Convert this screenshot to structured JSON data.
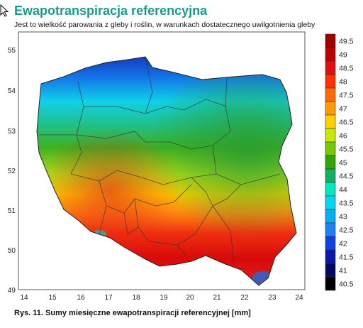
{
  "header": {
    "title": "Ewapotranspiracja referencyjna",
    "subtitle": "Jest to wielkość parowania z gleby i roślin, w warunkach dostatecznego uwilgotnienia gleby"
  },
  "map": {
    "lon_ticks": [
      "14",
      "15",
      "16",
      "17",
      "18",
      "19",
      "20",
      "21",
      "22",
      "23",
      "24"
    ],
    "lat_ticks": [
      "55",
      "54",
      "53",
      "52",
      "51",
      "50",
      "49"
    ],
    "zones": [
      {
        "name": "north-coast",
        "value": 41.5,
        "color": "#0a1f8a"
      },
      {
        "name": "north-central",
        "value": 43.5,
        "color": "#20c0e0"
      },
      {
        "name": "central-north",
        "value": 45.0,
        "color": "#2aa040"
      },
      {
        "name": "central",
        "value": 46.5,
        "color": "#a8dc20"
      },
      {
        "name": "central-south",
        "value": 47.5,
        "color": "#ff9020"
      },
      {
        "name": "south",
        "value": 49.0,
        "color": "#e81818"
      },
      {
        "name": "east",
        "value": 45.5,
        "color": "#30a838"
      }
    ]
  },
  "legend": {
    "entries": [
      {
        "label": "49.5",
        "color": "#9e0000"
      },
      {
        "label": "49",
        "color": "#c00000"
      },
      {
        "label": "48.5",
        "color": "#e01010"
      },
      {
        "label": "48",
        "color": "#ff3000"
      },
      {
        "label": "47.5",
        "color": "#ff6a00"
      },
      {
        "label": "47",
        "color": "#ff9a00"
      },
      {
        "label": "46.5",
        "color": "#ffd000"
      },
      {
        "label": "46",
        "color": "#c8e800"
      },
      {
        "label": "45.5",
        "color": "#78c800"
      },
      {
        "label": "45",
        "color": "#2ea800"
      },
      {
        "label": "44.5",
        "color": "#10b060"
      },
      {
        "label": "44",
        "color": "#00e8c0"
      },
      {
        "label": "43.5",
        "color": "#00d8f0"
      },
      {
        "label": "43",
        "color": "#00b0f0"
      },
      {
        "label": "42.5",
        "color": "#2080f8"
      },
      {
        "label": "42",
        "color": "#1040e0"
      },
      {
        "label": "41.5",
        "color": "#0818a8"
      },
      {
        "label": "41",
        "color": "#000a60"
      },
      {
        "label": "40.5",
        "color": "#000000"
      }
    ]
  },
  "caption": "Rys. 11. Sumy miesięczne ewapotranspiracji referencyjnej [mm]"
}
